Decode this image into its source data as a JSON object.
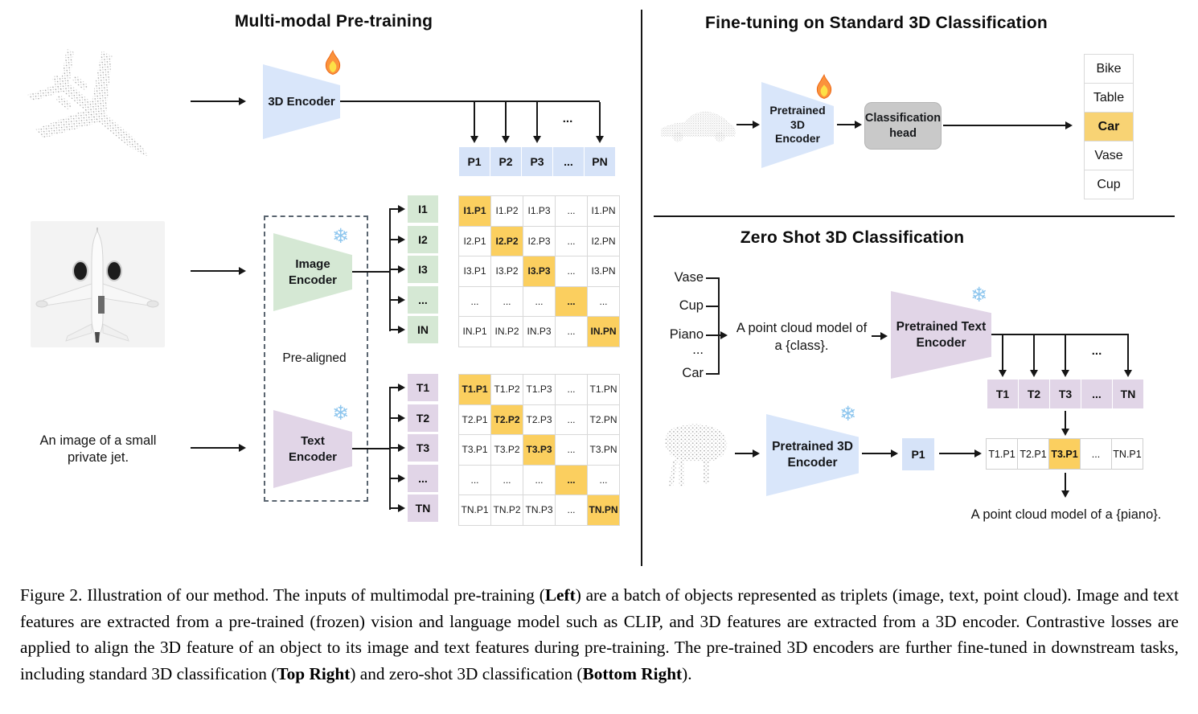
{
  "icons": {
    "snowflake": "❄",
    "fire": "flame"
  },
  "colors": {
    "blue": "#d9e6fa",
    "blue_cell": "#d6e3f8",
    "green": "#d5e8d4",
    "purple": "#e1d5e7",
    "orange": "#fbcf5f",
    "car_hl": "#f8d374",
    "head_gray": "#c9c9c9"
  },
  "left": {
    "title": "Multi-modal Pre-training",
    "encoder_3d": "3D Encoder",
    "image_encoder": "Image\nEncoder",
    "text_encoder": "Text\nEncoder",
    "prealigned": "Pre-aligned",
    "jet_caption": "An image of a small\nprivate jet.",
    "dots": "...",
    "p_row": [
      "P1",
      "P2",
      "P3",
      "...",
      "PN"
    ],
    "i_labels": [
      "I1",
      "I2",
      "I3",
      "...",
      "IN"
    ],
    "t_labels": [
      "T1",
      "T2",
      "T3",
      "...",
      "TN"
    ],
    "i_matrix": [
      [
        "I1.P1",
        "I1.P2",
        "I1.P3",
        "...",
        "I1.PN"
      ],
      [
        "I2.P1",
        "I2.P2",
        "I2.P3",
        "...",
        "I2.PN"
      ],
      [
        "I3.P1",
        "I3.P2",
        "I3.P3",
        "...",
        "I3.PN"
      ],
      [
        "...",
        "...",
        "...",
        "...",
        "..."
      ],
      [
        "IN.P1",
        "IN.P2",
        "IN.P3",
        "...",
        "IN.PN"
      ]
    ],
    "t_matrix": [
      [
        "T1.P1",
        "T1.P2",
        "T1.P3",
        "...",
        "T1.PN"
      ],
      [
        "T2.P1",
        "T2.P2",
        "T2.P3",
        "...",
        "T2.PN"
      ],
      [
        "T3.P1",
        "T3.P2",
        "T3.P3",
        "...",
        "T3.PN"
      ],
      [
        "...",
        "...",
        "...",
        "...",
        "..."
      ],
      [
        "TN.P1",
        "TN.P2",
        "TN.P3",
        "...",
        "TN.PN"
      ]
    ]
  },
  "finetune": {
    "title": "Fine-tuning on Standard 3D Classification",
    "encoder": "Pretrained 3D\nEncoder",
    "head": "Classification\nhead",
    "classes": [
      "Bike",
      "Table",
      "Car",
      "Vase",
      "Cup"
    ],
    "highlight_index": 2
  },
  "zeroshot": {
    "title": "Zero Shot 3D Classification",
    "class_names": [
      "Vase",
      "Cup",
      "Piano",
      "...",
      "Car"
    ],
    "prompt": "A point cloud model of\na {class}.",
    "text_encoder": "Pretrained Text\nEncoder",
    "encoder": "Pretrained 3D\nEncoder",
    "p1": "P1",
    "dots": "...",
    "t_row": [
      "T1",
      "T2",
      "T3",
      "...",
      "TN"
    ],
    "score_row": [
      "T1.P1",
      "T2.P1",
      "T3.P1",
      "...",
      "TN.P1"
    ],
    "score_highlight_index": 2,
    "result": "A point cloud model of a {piano}."
  },
  "caption": {
    "segments": [
      {
        "text": "Figure 2. Illustration of our method. The inputs of multimodal pre-training (",
        "bold": false
      },
      {
        "text": "Left",
        "bold": true
      },
      {
        "text": ") are a batch of objects represented as triplets (image, text, point cloud). Image and text features are extracted from a pre-trained (frozen) vision and language model such as CLIP, and 3D features are extracted from a 3D encoder. Contrastive losses are applied to align the 3D feature of an object to its image and text features during pre-training. The pre-trained 3D encoders are further fine-tuned in downstream tasks, including standard 3D classification (",
        "bold": false
      },
      {
        "text": "Top Right",
        "bold": true
      },
      {
        "text": ") and zero-shot 3D classification (",
        "bold": false
      },
      {
        "text": "Bottom Right",
        "bold": true
      },
      {
        "text": ").",
        "bold": false
      }
    ]
  }
}
